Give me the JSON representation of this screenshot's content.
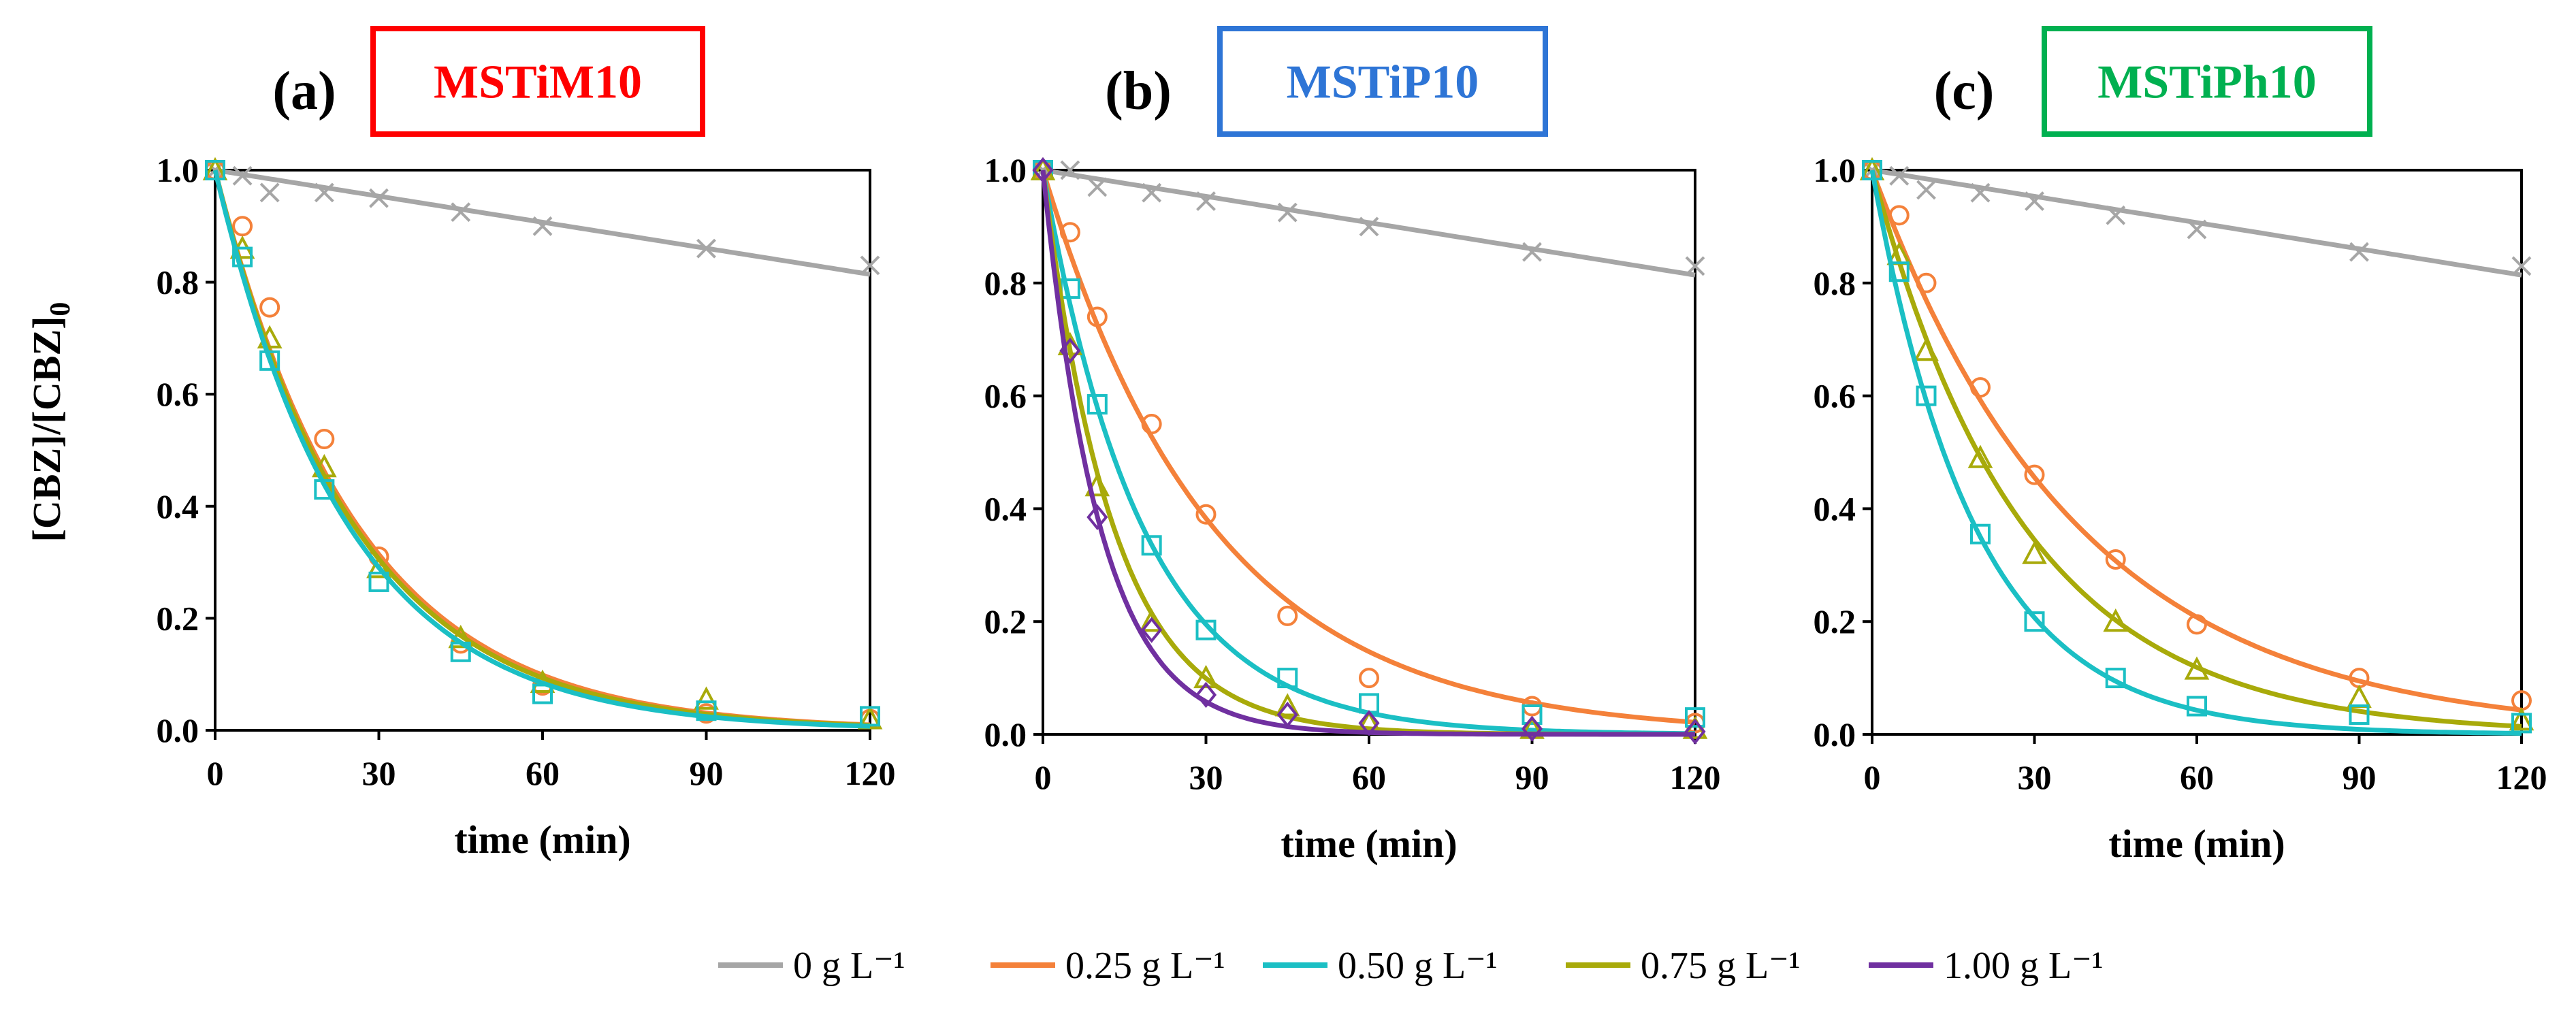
{
  "y_axis_label": "[CBZ]/[CBZ]",
  "y_axis_label_sub": "0",
  "legend": [
    {
      "label": "0 g L⁻¹",
      "color": "#a6a6a6"
    },
    {
      "label": "0.25 g L⁻¹",
      "color": "#f4813a"
    },
    {
      "label": "0.50 g L⁻¹",
      "color": "#1bbfc4"
    },
    {
      "label": "0.75 g L⁻¹",
      "color": "#a8aa0a"
    },
    {
      "label": "1.00 g L⁻¹",
      "color": "#7030a0"
    }
  ],
  "chart_data": [
    {
      "type": "scatter",
      "panel_label": "(a)",
      "title": "MSTiM10",
      "title_color": "#ff0000",
      "xlabel": "time (min)",
      "xlim": [
        0,
        120
      ],
      "ylim": [
        0,
        1
      ],
      "xticks": [
        0,
        30,
        60,
        90,
        120
      ],
      "yticks": [
        0.0,
        0.2,
        0.4,
        0.6,
        0.8,
        1.0
      ],
      "series": [
        {
          "color": "#a6a6a6",
          "marker": "x",
          "points": [
            [
              0,
              1.0
            ],
            [
              5,
              0.99
            ],
            [
              10,
              0.96
            ],
            [
              20,
              0.96
            ],
            [
              30,
              0.95
            ],
            [
              45,
              0.925
            ],
            [
              60,
              0.9
            ],
            [
              90,
              0.86
            ],
            [
              120,
              0.83
            ]
          ],
          "fit": {
            "model": "linear",
            "k": 0.00155
          }
        },
        {
          "color": "#f4813a",
          "marker": "circle",
          "points": [
            [
              0,
              1.0
            ],
            [
              5,
              0.9
            ],
            [
              10,
              0.755
            ],
            [
              20,
              0.52
            ],
            [
              30,
              0.31
            ],
            [
              45,
              0.155
            ],
            [
              60,
              0.08
            ],
            [
              90,
              0.03
            ],
            [
              120,
              0.02
            ]
          ],
          "fit": {
            "model": "exp",
            "k": 0.0386
          }
        },
        {
          "color": "#a8aa0a",
          "marker": "triangle",
          "points": [
            [
              0,
              1.0
            ],
            [
              5,
              0.86
            ],
            [
              10,
              0.7
            ],
            [
              20,
              0.47
            ],
            [
              30,
              0.29
            ],
            [
              45,
              0.165
            ],
            [
              60,
              0.085
            ],
            [
              90,
              0.055
            ],
            [
              120,
              0.02
            ]
          ],
          "fit": {
            "model": "exp",
            "k": 0.0395
          }
        },
        {
          "color": "#1bbfc4",
          "marker": "square",
          "points": [
            [
              0,
              1.0
            ],
            [
              5,
              0.845
            ],
            [
              10,
              0.66
            ],
            [
              20,
              0.43
            ],
            [
              30,
              0.265
            ],
            [
              45,
              0.14
            ],
            [
              60,
              0.065
            ],
            [
              90,
              0.035
            ],
            [
              120,
              0.025
            ]
          ],
          "fit": {
            "model": "exp",
            "k": 0.0412
          }
        }
      ]
    },
    {
      "type": "scatter",
      "panel_label": "(b)",
      "title": "MSTiP10",
      "title_color": "#2e75d6",
      "xlabel": "time (min)",
      "xlim": [
        0,
        120
      ],
      "ylim": [
        0,
        1
      ],
      "xticks": [
        0,
        30,
        60,
        90,
        120
      ],
      "yticks": [
        0.0,
        0.2,
        0.4,
        0.6,
        0.8,
        1.0
      ],
      "series": [
        {
          "color": "#a6a6a6",
          "marker": "x",
          "points": [
            [
              0,
              1.0
            ],
            [
              5,
              1.0
            ],
            [
              10,
              0.97
            ],
            [
              20,
              0.96
            ],
            [
              30,
              0.945
            ],
            [
              45,
              0.925
            ],
            [
              60,
              0.9
            ],
            [
              90,
              0.855
            ],
            [
              120,
              0.83
            ]
          ],
          "fit": {
            "model": "linear",
            "k": 0.00155
          }
        },
        {
          "color": "#f4813a",
          "marker": "circle",
          "points": [
            [
              0,
              1.0
            ],
            [
              5,
              0.89
            ],
            [
              10,
              0.74
            ],
            [
              20,
              0.55
            ],
            [
              30,
              0.39
            ],
            [
              45,
              0.21
            ],
            [
              60,
              0.1
            ],
            [
              90,
              0.05
            ],
            [
              120,
              0.02
            ]
          ],
          "fit": {
            "model": "exp",
            "k": 0.032
          }
        },
        {
          "color": "#1bbfc4",
          "marker": "square",
          "points": [
            [
              0,
              1.0
            ],
            [
              5,
              0.79
            ],
            [
              10,
              0.585
            ],
            [
              20,
              0.335
            ],
            [
              30,
              0.185
            ],
            [
              45,
              0.1
            ],
            [
              60,
              0.055
            ],
            [
              90,
              0.035
            ],
            [
              120,
              0.03
            ]
          ],
          "fit": {
            "model": "exp",
            "k": 0.0545
          }
        },
        {
          "color": "#a8aa0a",
          "marker": "triangle",
          "points": [
            [
              0,
              1.0
            ],
            [
              5,
              0.69
            ],
            [
              10,
              0.44
            ],
            [
              20,
              0.2
            ],
            [
              30,
              0.1
            ],
            [
              45,
              0.05
            ],
            [
              60,
              0.02
            ],
            [
              90,
              0.01
            ],
            [
              120,
              0.01
            ]
          ],
          "fit": {
            "model": "exp",
            "k": 0.077
          }
        },
        {
          "color": "#7030a0",
          "marker": "diamond",
          "points": [
            [
              0,
              1.0
            ],
            [
              5,
              0.68
            ],
            [
              10,
              0.385
            ],
            [
              20,
              0.185
            ],
            [
              30,
              0.07
            ],
            [
              45,
              0.035
            ],
            [
              60,
              0.02
            ],
            [
              90,
              0.01
            ],
            [
              120,
              0.005
            ]
          ],
          "fit": {
            "model": "exp",
            "k": 0.095
          }
        }
      ]
    },
    {
      "type": "scatter",
      "panel_label": "(c)",
      "title": "MSTiPh10",
      "title_color": "#00b050",
      "xlabel": "time (min)",
      "xlim": [
        0,
        120
      ],
      "ylim": [
        0,
        1
      ],
      "xticks": [
        0,
        30,
        60,
        90,
        120
      ],
      "yticks": [
        0.0,
        0.2,
        0.4,
        0.6,
        0.8,
        1.0
      ],
      "series": [
        {
          "color": "#a6a6a6",
          "marker": "x",
          "points": [
            [
              0,
              1.0
            ],
            [
              5,
              0.99
            ],
            [
              10,
              0.965
            ],
            [
              20,
              0.96
            ],
            [
              30,
              0.945
            ],
            [
              45,
              0.92
            ],
            [
              60,
              0.895
            ],
            [
              90,
              0.855
            ],
            [
              120,
              0.83
            ]
          ],
          "fit": {
            "model": "linear",
            "k": 0.00155
          }
        },
        {
          "color": "#f4813a",
          "marker": "circle",
          "points": [
            [
              0,
              1.0
            ],
            [
              5,
              0.92
            ],
            [
              10,
              0.8
            ],
            [
              20,
              0.615
            ],
            [
              30,
              0.46
            ],
            [
              45,
              0.31
            ],
            [
              60,
              0.195
            ],
            [
              90,
              0.1
            ],
            [
              120,
              0.06
            ]
          ],
          "fit": {
            "model": "exp",
            "k": 0.0262
          }
        },
        {
          "color": "#a8aa0a",
          "marker": "triangle",
          "points": [
            [
              0,
              1.0
            ],
            [
              5,
              0.85
            ],
            [
              10,
              0.68
            ],
            [
              20,
              0.49
            ],
            [
              30,
              0.32
            ],
            [
              45,
              0.2
            ],
            [
              60,
              0.115
            ],
            [
              90,
              0.065
            ],
            [
              120,
              0.025
            ]
          ],
          "fit": {
            "model": "exp",
            "k": 0.0355
          }
        },
        {
          "color": "#1bbfc4",
          "marker": "square",
          "points": [
            [
              0,
              1.0
            ],
            [
              5,
              0.82
            ],
            [
              10,
              0.6
            ],
            [
              20,
              0.355
            ],
            [
              30,
              0.2
            ],
            [
              45,
              0.1
            ],
            [
              60,
              0.05
            ],
            [
              90,
              0.035
            ],
            [
              120,
              0.02
            ]
          ],
          "fit": {
            "model": "exp",
            "k": 0.0525
          }
        }
      ]
    }
  ]
}
